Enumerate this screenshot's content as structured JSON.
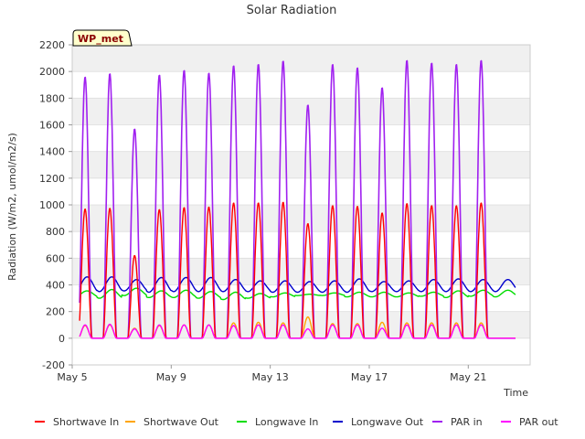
{
  "chart_data": {
    "type": "line",
    "title": "Solar Radiation",
    "xlabel": "Time",
    "ylabel": "Radiation (W/m2, umol/m2/s)",
    "station_label": "WP_met",
    "ylim": [
      -200,
      2200
    ],
    "yticks": [
      -200,
      0,
      200,
      400,
      600,
      800,
      1000,
      1200,
      1400,
      1600,
      1800,
      2000,
      2200
    ],
    "xlim": [
      0.0,
      18.5
    ],
    "x_unit": "days since May 5 00:00",
    "xticks": [
      {
        "day": 0,
        "label": "May 5"
      },
      {
        "day": 4,
        "label": "May 9"
      },
      {
        "day": 8,
        "label": "May 13"
      },
      {
        "day": 12,
        "label": "May 17"
      },
      {
        "day": 16,
        "label": "May 21"
      }
    ],
    "grid": "horizontal bands",
    "legend": "bottom",
    "days": [
      "May 5",
      "May 6",
      "May 7",
      "May 8",
      "May 9",
      "May 10",
      "May 11",
      "May 12",
      "May 13",
      "May 14",
      "May 15",
      "May 16",
      "May 17",
      "May 18",
      "May 19",
      "May 20",
      "May 21",
      "May 22"
    ],
    "series": [
      {
        "name": "Shortwave In",
        "color": "#ff0000",
        "kind": "diurnal",
        "daily_peak": [
          970,
          975,
          620,
          965,
          980,
          985,
          1015,
          1015,
          1020,
          860,
          995,
          990,
          940,
          1010,
          995,
          995,
          1015,
          0
        ]
      },
      {
        "name": "Shortwave Out",
        "color": "#ffa500",
        "kind": "diurnal",
        "daily_peak": [
          95,
          100,
          75,
          95,
          100,
          100,
          115,
          120,
          115,
          160,
          110,
          110,
          120,
          115,
          115,
          115,
          115,
          0
        ]
      },
      {
        "name": "Longwave In",
        "color": "#00dd00",
        "kind": "baseline",
        "daily_low": [
          310,
          300,
          320,
          305,
          305,
          300,
          290,
          300,
          310,
          320,
          320,
          310,
          310,
          310,
          315,
          305,
          315,
          310
        ],
        "daily_high": [
          355,
          365,
          375,
          355,
          360,
          350,
          345,
          335,
          340,
          330,
          340,
          345,
          345,
          340,
          345,
          355,
          360,
          360
        ]
      },
      {
        "name": "Longwave Out",
        "color": "#0000cc",
        "kind": "baseline",
        "daily_low": [
          345,
          350,
          355,
          345,
          350,
          350,
          350,
          350,
          345,
          345,
          345,
          345,
          350,
          350,
          350,
          350,
          350,
          350
        ],
        "daily_high": [
          460,
          460,
          440,
          455,
          455,
          455,
          440,
          430,
          430,
          425,
          430,
          445,
          425,
          430,
          440,
          445,
          440,
          440
        ]
      },
      {
        "name": "PAR in",
        "color": "#a020f0",
        "kind": "diurnal",
        "daily_peak": [
          1960,
          1985,
          1570,
          1975,
          2010,
          1990,
          2045,
          2055,
          2080,
          1750,
          2055,
          2030,
          1880,
          2085,
          2065,
          2055,
          2085,
          0
        ]
      },
      {
        "name": "PAR out",
        "color": "#ff00ff",
        "kind": "diurnal",
        "daily_peak": [
          100,
          105,
          70,
          100,
          100,
          100,
          95,
          100,
          100,
          70,
          100,
          100,
          75,
          100,
          100,
          100,
          100,
          0
        ]
      }
    ]
  }
}
